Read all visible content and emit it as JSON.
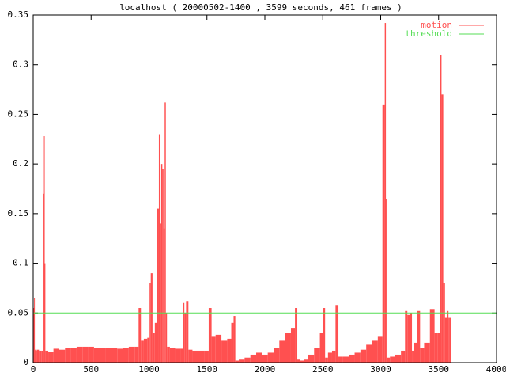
{
  "chart_data": {
    "type": "impulses",
    "title": "localhost ( 20000502-1400 , 3599 seconds, 461 frames )",
    "xlim": [
      0,
      4000
    ],
    "xticks": [
      0,
      500,
      1000,
      1500,
      2000,
      2500,
      3000,
      3500,
      4000
    ],
    "ylim": [
      0,
      0.35
    ],
    "yticks": [
      0,
      0.05,
      0.1,
      0.15,
      0.2,
      0.25,
      0.3,
      0.35
    ],
    "legend": "top-right",
    "series": [
      {
        "name": "motion",
        "color": "#ff5050",
        "style": "impulses",
        "x": [
          0,
          5,
          10,
          15,
          20,
          40,
          60,
          80,
          90,
          95,
          100,
          110,
          150,
          200,
          250,
          300,
          350,
          400,
          450,
          500,
          550,
          600,
          650,
          700,
          750,
          800,
          850,
          900,
          920,
          940,
          970,
          1000,
          1010,
          1020,
          1040,
          1060,
          1080,
          1090,
          1100,
          1110,
          1120,
          1130,
          1140,
          1150,
          1160,
          1200,
          1250,
          1290,
          1300,
          1310,
          1330,
          1350,
          1400,
          1450,
          1500,
          1530,
          1550,
          1600,
          1650,
          1700,
          1720,
          1740,
          1750,
          1800,
          1850,
          1900,
          1950,
          2000,
          2050,
          2100,
          2150,
          2200,
          2250,
          2270,
          2290,
          2320,
          2350,
          2400,
          2450,
          2500,
          2510,
          2530,
          2560,
          2600,
          2620,
          2650,
          2700,
          2750,
          2800,
          2850,
          2900,
          2950,
          3000,
          3030,
          3040,
          3050,
          3060,
          3100,
          3150,
          3200,
          3220,
          3240,
          3260,
          3280,
          3300,
          3330,
          3350,
          3400,
          3450,
          3480,
          3500,
          3520,
          3530,
          3550,
          3560,
          3580,
          3590,
          3599
        ],
        "values": [
          0.012,
          0.055,
          0.065,
          0.013,
          0.012,
          0.013,
          0.012,
          0.012,
          0.17,
          0.228,
          0.1,
          0.012,
          0.011,
          0.014,
          0.013,
          0.015,
          0.015,
          0.016,
          0.016,
          0.016,
          0.015,
          0.015,
          0.015,
          0.015,
          0.014,
          0.015,
          0.016,
          0.016,
          0.055,
          0.022,
          0.024,
          0.025,
          0.08,
          0.09,
          0.03,
          0.04,
          0.155,
          0.23,
          0.14,
          0.2,
          0.195,
          0.135,
          0.262,
          0.05,
          0.016,
          0.015,
          0.014,
          0.014,
          0.06,
          0.05,
          0.062,
          0.013,
          0.012,
          0.012,
          0.012,
          0.055,
          0.026,
          0.028,
          0.022,
          0.024,
          0.04,
          0.047,
          0.002,
          0.003,
          0.005,
          0.008,
          0.01,
          0.008,
          0.01,
          0.015,
          0.022,
          0.03,
          0.035,
          0.055,
          0.003,
          0.002,
          0.003,
          0.008,
          0.015,
          0.03,
          0.055,
          0.005,
          0.01,
          0.012,
          0.058,
          0.006,
          0.006,
          0.008,
          0.01,
          0.013,
          0.018,
          0.022,
          0.026,
          0.26,
          0.342,
          0.165,
          0.005,
          0.006,
          0.008,
          0.012,
          0.052,
          0.048,
          0.05,
          0.012,
          0.02,
          0.052,
          0.015,
          0.02,
          0.054,
          0.03,
          0.03,
          0.31,
          0.27,
          0.08,
          0.045,
          0.052,
          0.045,
          0.045
        ]
      },
      {
        "name": "threshold",
        "color": "#55dd55",
        "style": "line",
        "x": [
          0,
          4000
        ],
        "values": [
          0.05,
          0.05
        ]
      }
    ]
  }
}
